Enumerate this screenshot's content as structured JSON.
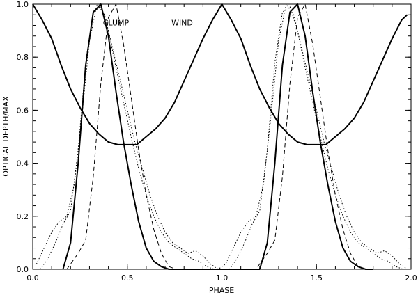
{
  "chart_data": {
    "type": "line",
    "xlabel": "PHASE",
    "ylabel": "OPTICAL DEPTH/MAX",
    "xlim": [
      0.0,
      2.0
    ],
    "ylim": [
      0.0,
      1.0
    ],
    "xticks": [
      0.0,
      0.5,
      1.0,
      1.5,
      2.0
    ],
    "xtick_labels": [
      "0.0",
      "0.5",
      "1.0",
      "1.5",
      "2.0"
    ],
    "yticks": [
      0.0,
      0.2,
      0.4,
      0.6,
      0.8,
      1.0
    ],
    "ytick_labels": [
      "0.0",
      "0.2",
      "0.4",
      "0.6",
      "0.8",
      "1.0"
    ],
    "minor_ticks_x": 0.1,
    "minor_ticks_y": 0.04,
    "grid": false,
    "annotations": [
      {
        "text": "CLUMP",
        "x": 0.44,
        "y": 0.92
      },
      {
        "text": "WIND",
        "x": 0.79,
        "y": 0.92
      }
    ],
    "series": [
      {
        "style": "solid-thick",
        "x": [
          0.0,
          0.05,
          0.1,
          0.15,
          0.2,
          0.25,
          0.3,
          0.35,
          0.4,
          0.45,
          0.5,
          0.55,
          0.6,
          0.65,
          0.7,
          0.75,
          0.8,
          0.85,
          0.9,
          0.95,
          1.0,
          1.05,
          1.1,
          1.15,
          1.2,
          1.25,
          1.3,
          1.35,
          1.4,
          1.45,
          1.5,
          1.55,
          1.6,
          1.65,
          1.7,
          1.75,
          1.8,
          1.85,
          1.9,
          1.95,
          1.98
        ],
        "y": [
          1.0,
          0.94,
          0.87,
          0.77,
          0.68,
          0.61,
          0.55,
          0.51,
          0.48,
          0.47,
          0.47,
          0.47,
          0.5,
          0.53,
          0.57,
          0.63,
          0.71,
          0.79,
          0.87,
          0.94,
          1.0,
          0.94,
          0.87,
          0.77,
          0.68,
          0.61,
          0.55,
          0.51,
          0.48,
          0.47,
          0.47,
          0.47,
          0.5,
          0.53,
          0.57,
          0.63,
          0.71,
          0.79,
          0.87,
          0.94,
          0.96
        ]
      },
      {
        "style": "solid-thick",
        "x": [
          0.16,
          0.2,
          0.24,
          0.28,
          0.32,
          0.36,
          0.4,
          0.44,
          0.48,
          0.52,
          0.56,
          0.6,
          0.64,
          0.68,
          0.72,
          0.76,
          0.8,
          0.85,
          0.9,
          0.95,
          1.0,
          1.05,
          1.1,
          1.15,
          1.2,
          1.24,
          1.28,
          1.32,
          1.36,
          1.4,
          1.44,
          1.48,
          1.52,
          1.56,
          1.6,
          1.64,
          1.68,
          1.72,
          1.76,
          1.8
        ],
        "y": [
          0.0,
          0.1,
          0.4,
          0.77,
          0.97,
          1.0,
          0.88,
          0.67,
          0.48,
          0.32,
          0.18,
          0.08,
          0.03,
          0.01,
          0.0,
          0.0,
          0.0,
          0.0,
          0.0,
          0.0,
          0.0,
          0.0,
          0.0,
          0.0,
          0.0,
          0.1,
          0.4,
          0.77,
          0.97,
          1.0,
          0.88,
          0.67,
          0.48,
          0.32,
          0.18,
          0.08,
          0.03,
          0.01,
          0.0,
          0.0
        ]
      },
      {
        "style": "dashed",
        "x": [
          0.18,
          0.24,
          0.28,
          0.32,
          0.36,
          0.4,
          0.44,
          0.48,
          0.52,
          0.56,
          0.6,
          0.64,
          0.68,
          0.72,
          0.76,
          0.8,
          1.18,
          1.24,
          1.28,
          1.32,
          1.36,
          1.4,
          1.44,
          1.48,
          1.52,
          1.56,
          1.6,
          1.64,
          1.68,
          1.72,
          1.76
        ],
        "y": [
          0.0,
          0.06,
          0.11,
          0.35,
          0.7,
          0.95,
          1.0,
          0.85,
          0.65,
          0.45,
          0.28,
          0.15,
          0.06,
          0.01,
          0.0,
          0.0,
          0.0,
          0.06,
          0.11,
          0.35,
          0.7,
          0.95,
          1.0,
          0.85,
          0.65,
          0.45,
          0.28,
          0.15,
          0.06,
          0.01,
          0.0
        ]
      },
      {
        "style": "dotted",
        "x": [
          0.02,
          0.06,
          0.1,
          0.14,
          0.18,
          0.22,
          0.26,
          0.3,
          0.34,
          0.38,
          0.42,
          0.46,
          0.5,
          0.54,
          0.58,
          0.62,
          0.66,
          0.7,
          0.74,
          0.78,
          0.82,
          0.86,
          0.9,
          0.94,
          0.98,
          1.02,
          1.06,
          1.1,
          1.14,
          1.18,
          1.22,
          1.26,
          1.3,
          1.34,
          1.38,
          1.42,
          1.46,
          1.5,
          1.54,
          1.58,
          1.62,
          1.66,
          1.7,
          1.74,
          1.78,
          1.82,
          1.86,
          1.9,
          1.94,
          1.98
        ],
        "y": [
          0.02,
          0.08,
          0.14,
          0.18,
          0.2,
          0.32,
          0.58,
          0.86,
          1.0,
          0.96,
          0.84,
          0.72,
          0.6,
          0.48,
          0.38,
          0.28,
          0.2,
          0.14,
          0.1,
          0.08,
          0.06,
          0.07,
          0.05,
          0.02,
          0.0,
          0.02,
          0.08,
          0.14,
          0.18,
          0.2,
          0.32,
          0.58,
          0.86,
          1.0,
          0.96,
          0.84,
          0.72,
          0.6,
          0.48,
          0.38,
          0.28,
          0.2,
          0.14,
          0.1,
          0.08,
          0.06,
          0.07,
          0.05,
          0.02,
          0.0
        ]
      },
      {
        "style": "dotted",
        "x": [
          0.04,
          0.08,
          0.12,
          0.16,
          0.2,
          0.24,
          0.28,
          0.32,
          0.36,
          0.4,
          0.44,
          0.48,
          0.52,
          0.56,
          0.6,
          0.64,
          0.68,
          0.72,
          0.76,
          0.8,
          0.84,
          0.88,
          0.92,
          0.96,
          1.04,
          1.08,
          1.12,
          1.16,
          1.2,
          1.24,
          1.28,
          1.32,
          1.36,
          1.4,
          1.44,
          1.48,
          1.52,
          1.56,
          1.6,
          1.64,
          1.68,
          1.72,
          1.76,
          1.8,
          1.84,
          1.88,
          1.92,
          1.96
        ],
        "y": [
          0.0,
          0.04,
          0.1,
          0.17,
          0.22,
          0.45,
          0.78,
          0.97,
          0.99,
          0.9,
          0.76,
          0.63,
          0.5,
          0.38,
          0.28,
          0.2,
          0.14,
          0.1,
          0.08,
          0.06,
          0.04,
          0.03,
          0.01,
          0.0,
          0.0,
          0.04,
          0.1,
          0.17,
          0.22,
          0.45,
          0.78,
          0.97,
          0.99,
          0.9,
          0.76,
          0.63,
          0.5,
          0.38,
          0.28,
          0.2,
          0.14,
          0.1,
          0.08,
          0.06,
          0.04,
          0.03,
          0.01,
          0.0
        ]
      }
    ]
  }
}
